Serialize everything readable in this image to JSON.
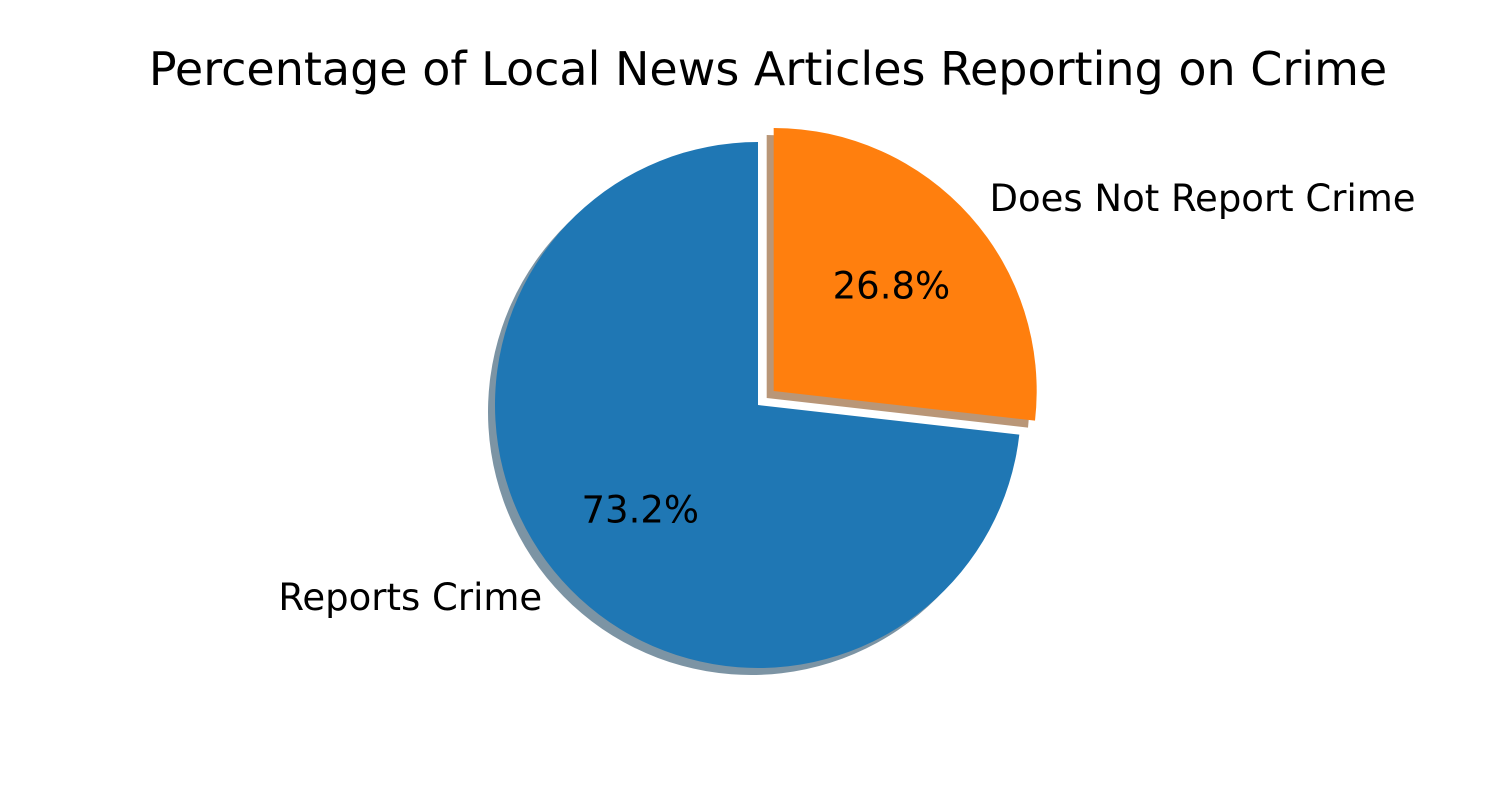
{
  "chart_data": {
    "type": "pie",
    "title": "Percentage of Local News Articles Reporting on Crime",
    "slices": [
      {
        "label": "Reports Crime",
        "value": 73.2,
        "pct_label": "73.2%",
        "color": "#1f77b4",
        "exploded": false
      },
      {
        "label": "Does Not Report Crime",
        "value": 26.8,
        "pct_label": "26.8%",
        "color": "#ff7f0e",
        "exploded": true
      }
    ],
    "shadow": true,
    "start": "top, clockwise",
    "legend": "none"
  }
}
